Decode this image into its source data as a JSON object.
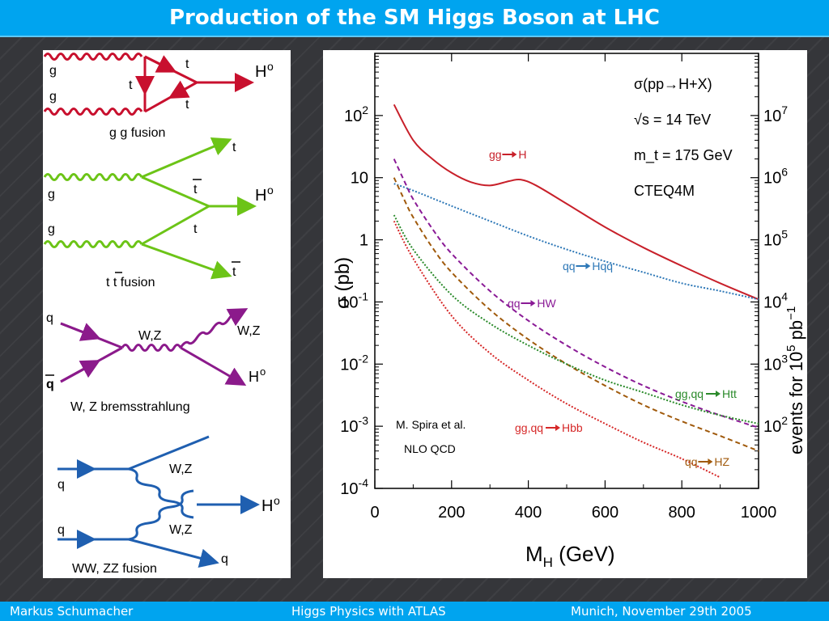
{
  "slide": {
    "title": "Production of the SM Higgs Boson at LHC",
    "footer": {
      "author": "Markus  Schumacher",
      "talk": "Higgs Physics  with ATLAS",
      "venue_date": "Munich, November 29th 2005"
    }
  },
  "diagrams": {
    "gg_fusion": {
      "g1": "g",
      "g2": "g",
      "t_top": "t",
      "t_mid": "t",
      "t_bot": "t",
      "higgs": "H",
      "higgs_sup": "o",
      "caption": "g g fusion"
    },
    "ttbar_fusion": {
      "t_top": "t",
      "tbar1": "t",
      "g1": "g",
      "higgs": "H",
      "higgs_sup": "o",
      "g2": "g",
      "t_mid": "t",
      "tbar2": "t",
      "caption": "t t fusion"
    },
    "bremsstrahlung": {
      "q": "q",
      "qbar": "q",
      "wz_prop": "W,Z",
      "wz_out": "W,Z",
      "higgs": "H",
      "higgs_sup": "o",
      "caption": "W, Z bremsstrahlung"
    },
    "vbf": {
      "wz1": "W,Z",
      "q_in1": "q",
      "higgs": "H",
      "higgs_sup": "o",
      "q_in2": "q",
      "wz2": "W,Z",
      "q_out": "q",
      "caption": "WW, ZZ fusion"
    }
  },
  "chart_data": {
    "type": "line",
    "xlabel": "M_H (GeV)",
    "ylabel": "σ (pb)",
    "ylabel_right": "events for 10^5 pb^-1",
    "xlim": [
      0,
      1000
    ],
    "ylim": [
      0.0001,
      1000
    ],
    "y_log": true,
    "x_ticks": [
      "0",
      "200",
      "400",
      "600",
      "800",
      "1000"
    ],
    "y_ticks": [
      {
        "v": 100,
        "base": "10",
        "exp": "2"
      },
      {
        "v": 10,
        "base": "10",
        "exp": ""
      },
      {
        "v": 1,
        "base": "1",
        "exp": ""
      },
      {
        "v": 0.1,
        "base": "10",
        "exp": "-1"
      },
      {
        "v": 0.01,
        "base": "10",
        "exp": "-2"
      },
      {
        "v": 0.001,
        "base": "10",
        "exp": "-3"
      },
      {
        "v": 0.0001,
        "base": "10",
        "exp": "-4"
      }
    ],
    "y2_ticks": [
      {
        "v": 100,
        "base": "10",
        "exp": "7"
      },
      {
        "v": 10,
        "base": "10",
        "exp": "6"
      },
      {
        "v": 1,
        "base": "10",
        "exp": "5"
      },
      {
        "v": 0.1,
        "base": "10",
        "exp": "4"
      },
      {
        "v": 0.01,
        "base": "10",
        "exp": "3"
      },
      {
        "v": 0.001,
        "base": "10",
        "exp": "2"
      }
    ],
    "info": {
      "process": "σ(pp→H+X)",
      "sqrt_s": "√s = 14 TeV",
      "mt": "m_t = 175 GeV",
      "pdf": "CTEQ4M"
    },
    "credit": {
      "author": "M. Spira et al.",
      "order": "NLO  QCD"
    },
    "series": [
      {
        "name": "gg → H",
        "color": "#c8202a",
        "dash": "",
        "x": [
          50,
          100,
          150,
          200,
          250,
          300,
          350,
          380,
          420,
          500,
          600,
          700,
          800,
          900,
          1000
        ],
        "y": [
          150,
          40,
          20,
          12,
          8.5,
          7.5,
          8.8,
          9.3,
          7.5,
          3.8,
          1.6,
          0.75,
          0.38,
          0.2,
          0.11
        ]
      },
      {
        "name": "qq → Hqq",
        "color": "#2e78b7",
        "dash": "2 2",
        "x": [
          50,
          100,
          200,
          300,
          400,
          500,
          600,
          700,
          800,
          900,
          1000
        ],
        "y": [
          8,
          6.2,
          3.5,
          2,
          1.15,
          0.7,
          0.45,
          0.3,
          0.2,
          0.15,
          0.11
        ]
      },
      {
        "name": "qq → HW",
        "color": "#8a1a96",
        "dash": "6 4",
        "x": [
          50,
          80,
          100,
          150,
          200,
          300,
          400,
          500,
          600,
          700,
          800,
          900,
          1000
        ],
        "y": [
          20,
          8,
          4.5,
          1.5,
          0.6,
          0.15,
          0.05,
          0.02,
          0.009,
          0.0045,
          0.0025,
          0.0015,
          0.00095
        ]
      },
      {
        "name": "qq → HZ",
        "color": "#a05a0c",
        "dash": "6 4",
        "x": [
          50,
          80,
          100,
          150,
          200,
          300,
          400,
          500,
          600,
          700,
          800,
          900,
          1000
        ],
        "y": [
          10,
          4,
          2.3,
          0.75,
          0.3,
          0.075,
          0.025,
          0.01,
          0.0045,
          0.0022,
          0.0012,
          0.0007,
          0.0004
        ]
      },
      {
        "name": "gg,qq → Htt",
        "color": "#2a8a2a",
        "dash": "2 2",
        "x": [
          50,
          100,
          200,
          300,
          400,
          500,
          600,
          700,
          800,
          900,
          1000
        ],
        "y": [
          2.5,
          0.7,
          0.13,
          0.045,
          0.02,
          0.01,
          0.0055,
          0.0035,
          0.0022,
          0.0015,
          0.0011
        ]
      },
      {
        "name": "gg,qq → Hbb",
        "color": "#d62828",
        "dash": "2 2",
        "x": [
          50,
          100,
          200,
          300,
          400,
          500,
          600,
          700,
          800,
          900
        ],
        "y": [
          2,
          0.5,
          0.06,
          0.015,
          0.0055,
          0.0023,
          0.0011,
          0.00055,
          0.0003,
          0.00015
        ]
      }
    ],
    "labels": [
      {
        "text": "gg",
        "tail": "H",
        "color": "#c8202a"
      },
      {
        "text": "qq",
        "tail": "Hqq",
        "color": "#2e78b7"
      },
      {
        "text": "qq",
        "tail": "HW",
        "color": "#8a1a96"
      },
      {
        "text": "gg,qq",
        "tail": "Htt",
        "color": "#2a8a2a"
      },
      {
        "text": "gg,qq",
        "tail": "Hbb",
        "color": "#d62828"
      },
      {
        "text": "qq",
        "tail": "HZ",
        "color": "#a05a0c"
      }
    ]
  }
}
